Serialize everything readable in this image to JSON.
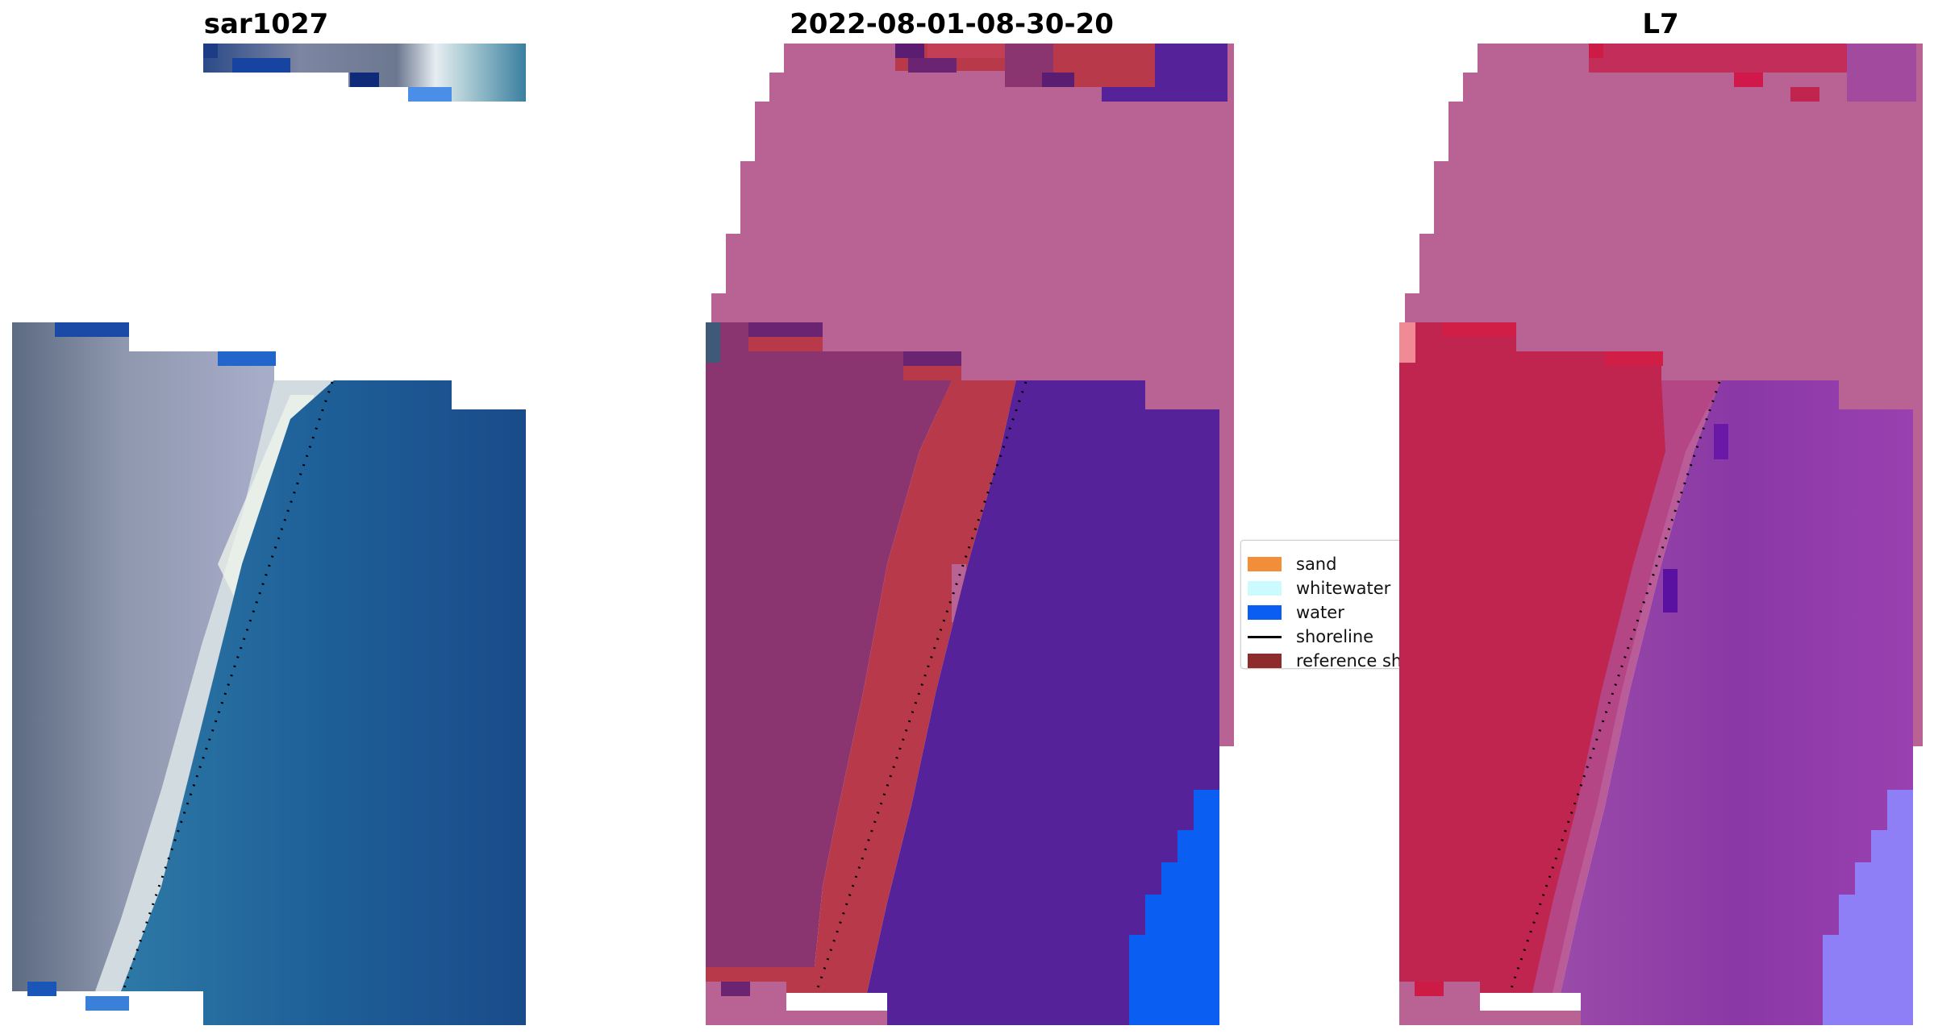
{
  "panels": {
    "left": {
      "title": "sar1027"
    },
    "middle": {
      "title": "2022-08-01-08-30-20"
    },
    "right": {
      "title": "L7"
    }
  },
  "legend": {
    "items": [
      {
        "label": "sand",
        "color": "#f28e3a",
        "kind": "patch"
      },
      {
        "label": "whitewater",
        "color": "#cbfbff",
        "kind": "patch"
      },
      {
        "label": "water",
        "color": "#0a5ff2",
        "kind": "patch"
      },
      {
        "label": "shoreline",
        "color": "#000000",
        "kind": "line"
      },
      {
        "label": "reference sh",
        "color": "#8e2b2b",
        "kind": "patch"
      }
    ]
  },
  "colors": {
    "rgb_land": "#8c93a8",
    "rgb_beach": "#d8dde0",
    "rgb_water": "#1e5f98",
    "class_land": "#8a3470",
    "class_sand": "#b83a4a",
    "class_water": "#55229a",
    "class_water_bright": "#0a5ff2",
    "mask_pink": "#b96395",
    "ndwi_land": "#c0254f",
    "ndwi_water": "#8a38a6",
    "ndwi_light": "#8f7ff7"
  }
}
